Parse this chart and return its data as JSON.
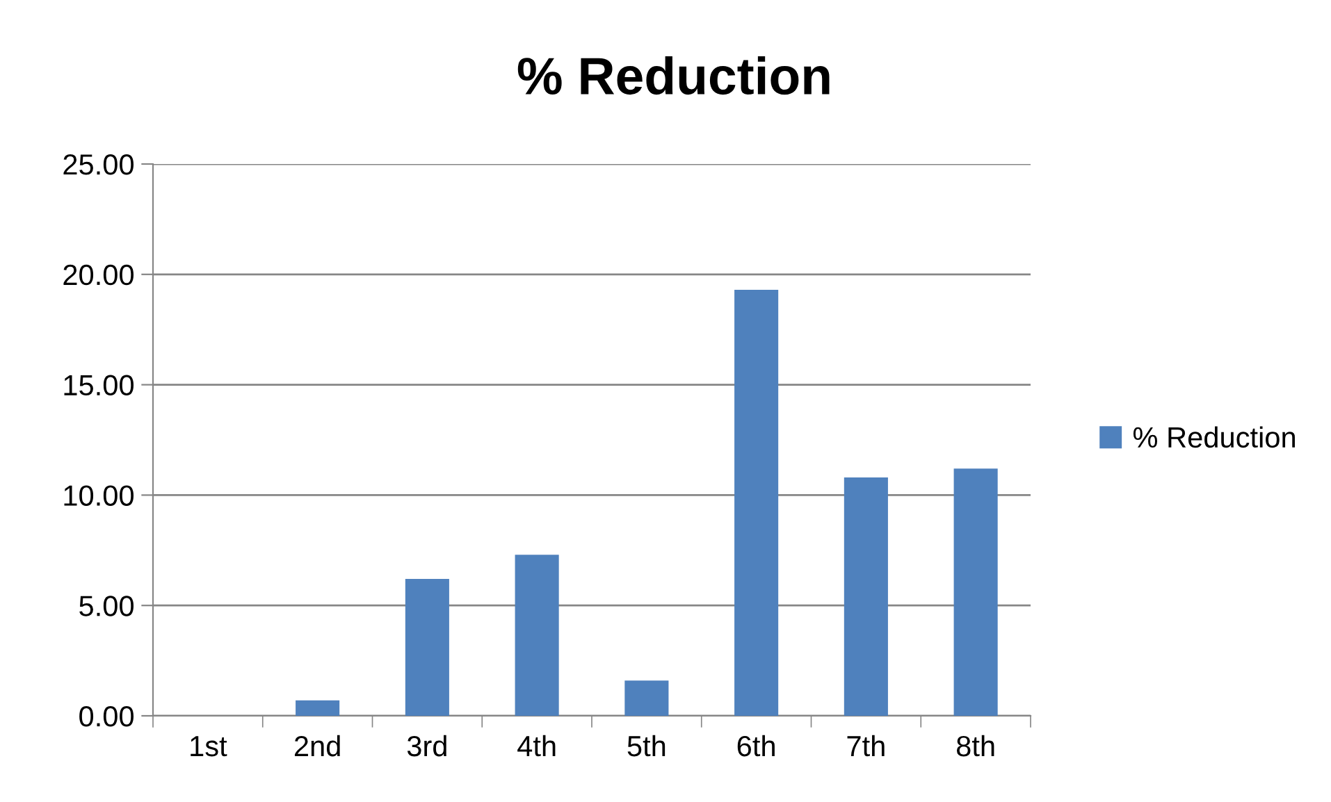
{
  "chart_data": {
    "type": "bar",
    "title": "% Reduction",
    "categories": [
      "1st",
      "2nd",
      "3rd",
      "4th",
      "5th",
      "6th",
      "7th",
      "8th"
    ],
    "series": [
      {
        "name": "% Reduction",
        "color": "#4f81bd",
        "values": [
          0,
          0.7,
          6.2,
          7.3,
          1.6,
          19.3,
          10.8,
          11.2
        ]
      }
    ],
    "ylim": [
      0,
      25
    ],
    "yticks": [
      {
        "value": 0,
        "label": "0.00"
      },
      {
        "value": 5,
        "label": "5.00"
      },
      {
        "value": 10,
        "label": "10.00"
      },
      {
        "value": 15,
        "label": "15.00"
      },
      {
        "value": 20,
        "label": "20.00"
      },
      {
        "value": 25,
        "label": "25.00"
      }
    ],
    "grid": "y",
    "legend": "right"
  }
}
